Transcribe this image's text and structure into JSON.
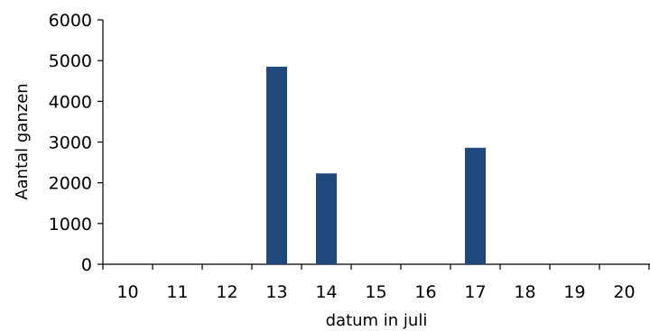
{
  "chart_data": {
    "type": "bar",
    "title": "",
    "xlabel": "datum in juli",
    "ylabel": "Aantal ganzen",
    "categories": [
      "10",
      "11",
      "12",
      "13",
      "14",
      "15",
      "16",
      "17",
      "18",
      "19",
      "20"
    ],
    "values": [
      0,
      0,
      0,
      4850,
      2230,
      0,
      0,
      2860,
      0,
      0,
      0
    ],
    "ylim": [
      0,
      6000
    ],
    "yticks": [
      "0",
      "1000",
      "2000",
      "3000",
      "4000",
      "5000",
      "6000"
    ],
    "grid": false,
    "legend": "none",
    "bar_color": "#1F497D"
  }
}
